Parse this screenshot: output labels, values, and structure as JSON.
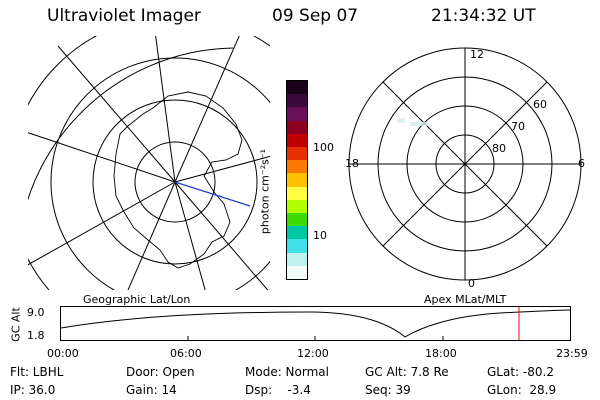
{
  "header": {
    "instrument": "Ultraviolet Imager",
    "date": "09 Sep 07",
    "time": "21:34:32 UT"
  },
  "colorbar": {
    "unit_label": "photon cm⁻²s⁻¹",
    "ticks": [
      "100",
      "10"
    ],
    "colors": [
      "#1a0018",
      "#3c0a3a",
      "#6a0f5a",
      "#8c0020",
      "#c00000",
      "#e63000",
      "#ff7a00",
      "#ffc200",
      "#ffff40",
      "#b4ff00",
      "#3cdc00",
      "#00c8a0",
      "#40e0e8",
      "#c0f0f0",
      "#f4fbfb"
    ]
  },
  "geo_map": {
    "title": "Geographic Lat/Lon"
  },
  "polar_plot": {
    "title": "Apex MLat/MLT",
    "mlt_labels": {
      "top": "12",
      "left": "18",
      "right": "6",
      "bottom": "0"
    },
    "lat_labels": [
      "60",
      "70",
      "80"
    ]
  },
  "altitude_strip": {
    "ylabel": "GC Alt",
    "yticks": [
      "9.0",
      "1.8"
    ],
    "xticks": [
      "00:00",
      "06:00",
      "12:00",
      "18:00",
      "23:59"
    ],
    "marker_color": "#ff0000"
  },
  "info_rows": [
    [
      "Flt: LBHL",
      "Door: Open",
      "Mode: Normal",
      "GC Alt: 7.8 Re",
      "GLat: -80.2"
    ],
    [
      "IP: 36.0",
      "Gain: 14",
      "Dsp:    -3.4",
      "Seq: 39",
      "GLon:  28.9"
    ]
  ]
}
